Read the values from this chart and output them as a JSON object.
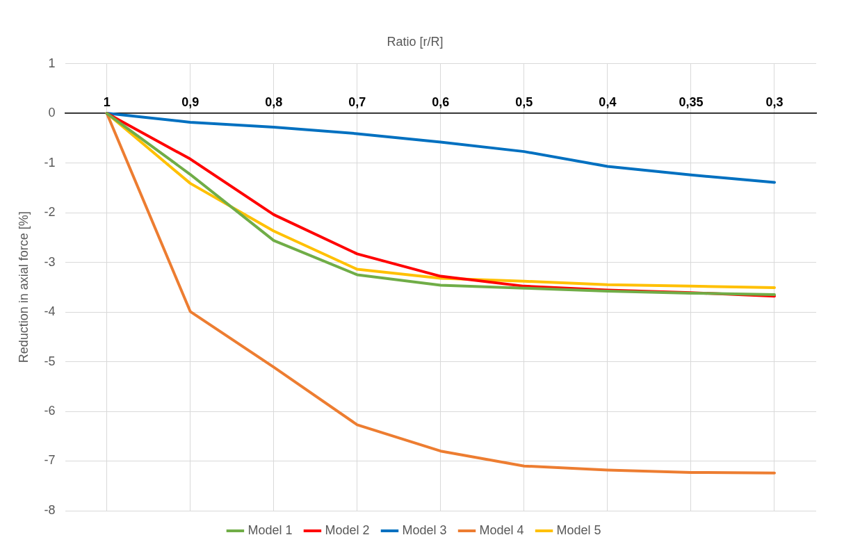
{
  "chart_data": {
    "type": "line",
    "xlabel": "Ratio [r/R]",
    "ylabel": "Reduction in axial force [%]",
    "categories": [
      "1",
      "0,9",
      "0,8",
      "0,7",
      "0,6",
      "0,5",
      "0,4",
      "0,35",
      "0,3"
    ],
    "series": [
      {
        "name": "Model 1",
        "color": "#70ad47",
        "values": [
          0,
          -1.23,
          -2.56,
          -3.25,
          -3.46,
          -3.52,
          -3.58,
          -3.62,
          -3.65
        ]
      },
      {
        "name": "Model 2",
        "color": "#ff0000",
        "values": [
          0,
          -0.92,
          -2.04,
          -2.83,
          -3.28,
          -3.48,
          -3.56,
          -3.61,
          -3.68
        ]
      },
      {
        "name": "Model 3",
        "color": "#0070c0",
        "values": [
          0,
          -0.18,
          -0.28,
          -0.41,
          -0.58,
          -0.77,
          -1.07,
          -1.24,
          -1.39
        ]
      },
      {
        "name": "Model 4",
        "color": "#ed7d31",
        "values": [
          0,
          -3.99,
          -5.11,
          -6.27,
          -6.8,
          -7.1,
          -7.18,
          -7.23,
          -7.24
        ]
      },
      {
        "name": "Model 5",
        "color": "#ffc000",
        "values": [
          0,
          -1.41,
          -2.37,
          -3.14,
          -3.32,
          -3.38,
          -3.45,
          -3.48,
          -3.51
        ]
      }
    ],
    "ylim": [
      -8,
      1
    ],
    "yticks": [
      -8,
      -7,
      -6,
      -5,
      -4,
      -3,
      -2,
      -1,
      0,
      1
    ],
    "grid": true,
    "legend": "bottom",
    "marker": "none",
    "line_style": "solid"
  }
}
